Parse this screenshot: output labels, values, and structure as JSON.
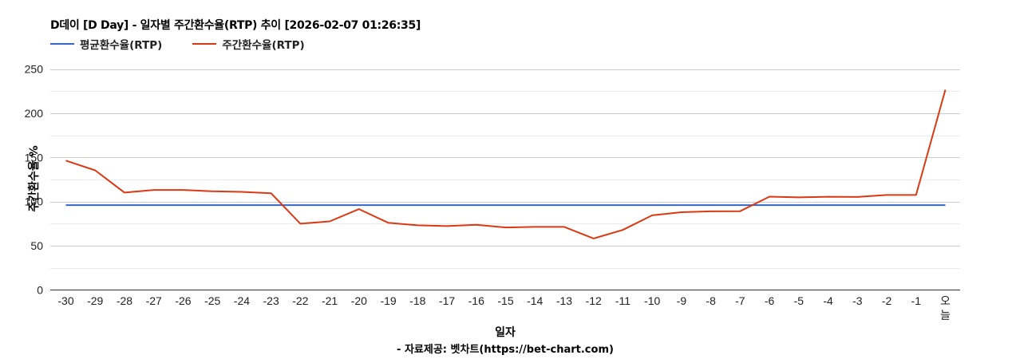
{
  "chart_data": {
    "type": "line",
    "title": "D데이 [D Day] - 일자별 주간환수율(RTP) 추이 [2026-02-07 01:26:35]",
    "xlabel": "일자",
    "ylabel": "주간환수율 %",
    "source_note": "- 자료제공: 벳차트(https://bet-chart.com)",
    "ylim": [
      0,
      250
    ],
    "yticks": [
      0,
      50,
      100,
      150,
      200,
      250
    ],
    "minor_grid_step": 25,
    "grid": true,
    "legend_position": "top",
    "categories": [
      "-30",
      "-29",
      "-28",
      "-27",
      "-26",
      "-25",
      "-24",
      "-23",
      "-22",
      "-21",
      "-20",
      "-19",
      "-18",
      "-17",
      "-16",
      "-15",
      "-14",
      "-13",
      "-12",
      "-11",
      "-10",
      "-9",
      "-8",
      "-7",
      "-6",
      "-5",
      "-4",
      "-3",
      "-2",
      "-1",
      "오늘"
    ],
    "series": [
      {
        "name": "평균환수율(RTP)",
        "color": "#3366cc",
        "values": [
          96,
          96,
          96,
          96,
          96,
          96,
          96,
          96,
          96,
          96,
          96,
          96,
          96,
          96,
          96,
          96,
          96,
          96,
          96,
          96,
          96,
          96,
          96,
          96,
          96,
          96,
          96,
          96,
          96,
          96,
          96
        ]
      },
      {
        "name": "주간환수율(RTP)",
        "color": "#dc3912",
        "values": [
          146.4,
          135.4,
          110.2,
          113.2,
          113.2,
          111.6,
          111,
          109.5,
          75,
          77.6,
          91.5,
          76,
          73.2,
          72.3,
          73.8,
          70.8,
          71.4,
          71.4,
          58.3,
          68,
          84.5,
          88,
          89,
          89.2,
          105.6,
          104.8,
          105.5,
          105.2,
          107.5,
          107.5,
          226.5
        ]
      }
    ]
  },
  "header": {
    "title": "D데이 [D Day] - 일자별 주간환수율(RTP) 추이 [2026-02-07 01:26:35]"
  },
  "legend": {
    "items": [
      {
        "label": "평균환수율(RTP)",
        "color": "#3366cc"
      },
      {
        "label": "주간환수율(RTP)",
        "color": "#dc3912"
      }
    ]
  },
  "axes": {
    "x_title": "일자",
    "y_title": "주간환수율 %",
    "today_label_line1": "오",
    "today_label_line2": "늘"
  },
  "footer": {
    "source": "- 자료제공: 벳차트(https://bet-chart.com)"
  }
}
